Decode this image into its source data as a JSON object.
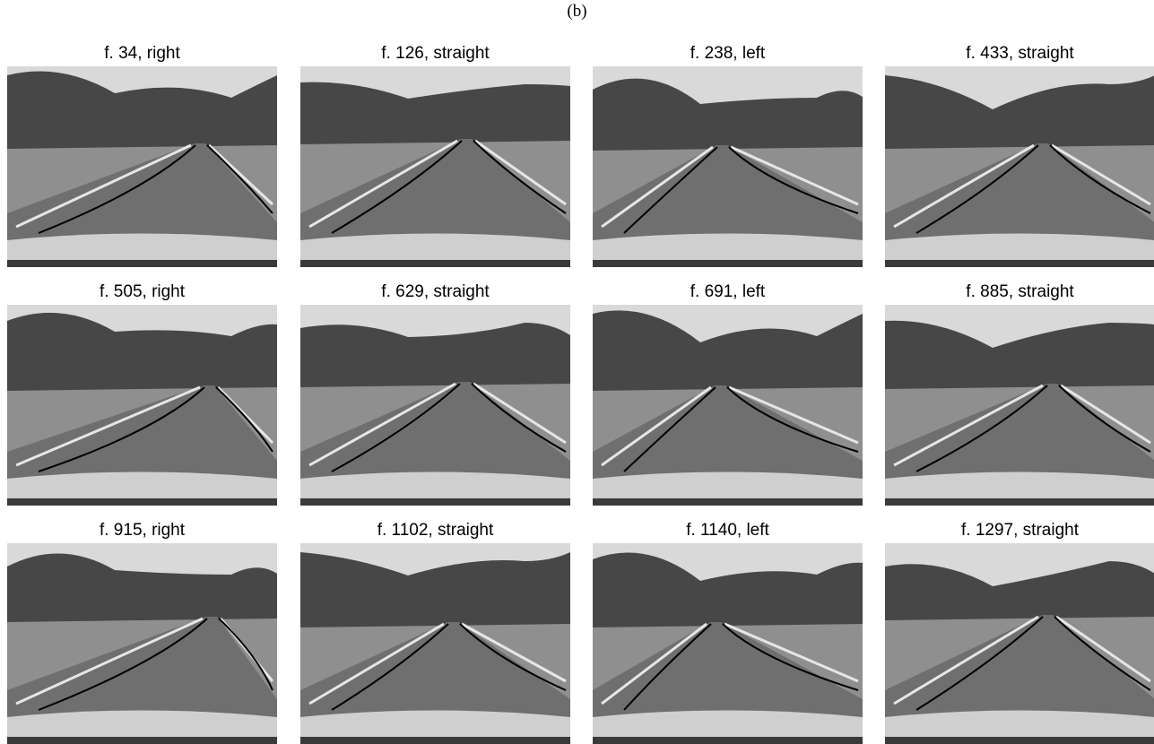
{
  "figure": {
    "label": "(b)",
    "panels": [
      {
        "caption": "f. 34, right"
      },
      {
        "caption": "f. 126, straight"
      },
      {
        "caption": "f. 238, left"
      },
      {
        "caption": "f. 433, straight"
      },
      {
        "caption": "f. 505, right"
      },
      {
        "caption": "f. 629, straight"
      },
      {
        "caption": "f. 691, left"
      },
      {
        "caption": "f. 885, straight"
      },
      {
        "caption": "f. 915, right"
      },
      {
        "caption": "f. 1102, straight"
      },
      {
        "caption": "f. 1140, left"
      },
      {
        "caption": "f. 1297, straight"
      }
    ]
  }
}
